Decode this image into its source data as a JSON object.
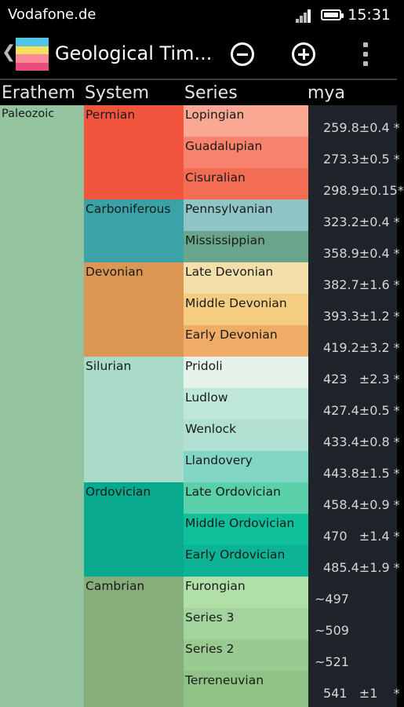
{
  "status_bar": {
    "carrier": "Vodafone.de",
    "time": "15:31",
    "icons": [
      "signal-icon",
      "battery-icon"
    ]
  },
  "action_bar": {
    "title": "Geological Tim...",
    "icons": [
      "back-icon",
      "app-icon",
      "zoom-out-icon",
      "zoom-in-icon",
      "overflow-menu-icon"
    ]
  },
  "headers": {
    "erathem": "Erathem",
    "system": "System",
    "series": "Series",
    "mya": "mya"
  },
  "erathems": [
    {
      "label": "Paleozoic",
      "color": "#93c39f"
    }
  ],
  "systems": [
    {
      "label": "Permian",
      "color": "#f2553e",
      "span": 3
    },
    {
      "label": "Carboniferous",
      "color": "#3ba3a8",
      "span": 2
    },
    {
      "label": "Devonian",
      "color": "#dc9654",
      "span": 3
    },
    {
      "label": "Silurian",
      "color": "#a9dbc8",
      "span": 4
    },
    {
      "label": "Ordovician",
      "color": "#08a98d",
      "span": 3
    },
    {
      "label": "Cambrian",
      "color": "#86ad7a",
      "span": 4
    }
  ],
  "series": [
    {
      "label": "Lopingian",
      "color": "#f9a894"
    },
    {
      "label": "Guadalupian",
      "color": "#f9826c"
    },
    {
      "label": "Cisuralian",
      "color": "#f36c54"
    },
    {
      "label": "Pennsylvanian",
      "color": "#90c5c8"
    },
    {
      "label": "Mississippian",
      "color": "#69a58c"
    },
    {
      "label": "Late Devonian",
      "color": "#f2dfa9"
    },
    {
      "label": "Middle Devonian",
      "color": "#f5cd80"
    },
    {
      "label": "Early Devonian",
      "color": "#efac66"
    },
    {
      "label": "Pridoli",
      "color": "#e6f3ea"
    },
    {
      "label": "Ludlow",
      "color": "#bfe7dc"
    },
    {
      "label": "Wenlock",
      "color": "#b1e0d3"
    },
    {
      "label": "Llandovery",
      "color": "#82d6c5"
    },
    {
      "label": "Late Ordovician",
      "color": "#59cfaa"
    },
    {
      "label": "Middle Ordovician",
      "color": "#0fc19b"
    },
    {
      "label": "Early Ordovician",
      "color": "#0cb394"
    },
    {
      "label": "Furongian",
      "color": "#b0dfa8"
    },
    {
      "label": "Series 3",
      "color": "#a3d49e"
    },
    {
      "label": "Series 2",
      "color": "#99cb90"
    },
    {
      "label": "Terreneuvian",
      "color": "#90c285"
    }
  ],
  "mya": [
    "259.8±0.4 *",
    "273.3±0.5 *",
    "298.9±0.15*",
    "323.2±0.4 *",
    "358.9±0.4 *",
    "382.7±1.6 *",
    "393.3±1.2 *",
    "419.2±3.2 *",
    "423   ±2.3 *",
    "427.4±0.5 *",
    "433.4±0.8 *",
    "443.8±1.5 *",
    "458.4±0.9 *",
    "470   ±1.4 *",
    "485.4±1.9 *",
    "~497",
    "~509",
    "~521",
    "541   ±1    *"
  ]
}
